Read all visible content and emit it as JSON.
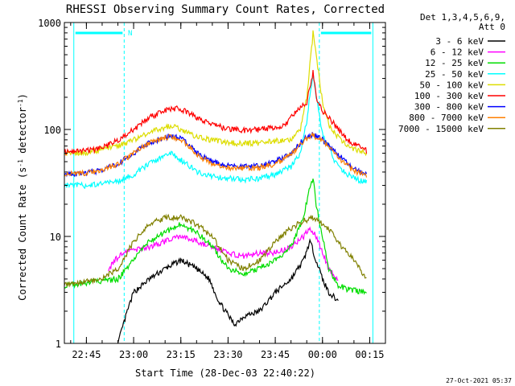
{
  "chart_data": {
    "type": "line",
    "title": "RHESSI Observing Summary Count Rates, Corrected",
    "xlabel": "Start Time (28-Dec-03 22:40:22)",
    "ylabel": "Corrected Count Rate (s",
    "ylabel_sup1": "-1",
    "ylabel_mid": " detector",
    "ylabel_sup2": "-1",
    "ylabel_end": ")",
    "yscale": "log",
    "ylim": [
      1,
      1000
    ],
    "xlim_minutes": [
      -20,
      20
    ],
    "x_reference": "00:00",
    "xtick_labels": [
      {
        "m": -75,
        "label": "22:45"
      },
      {
        "m": -60,
        "label": "23:00"
      },
      {
        "m": -45,
        "label": "23:15"
      },
      {
        "m": -30,
        "label": "23:30"
      },
      {
        "m": -15,
        "label": "23:45"
      },
      {
        "m": 0,
        "label": "00:00"
      },
      {
        "m": 15,
        "label": "00:15"
      }
    ],
    "ytick_labels": [
      {
        "v": 1,
        "label": "1"
      },
      {
        "v": 10,
        "label": "10"
      },
      {
        "v": 100,
        "label": "100"
      },
      {
        "v": 1000,
        "label": "1000"
      }
    ],
    "legend_header": [
      "Det 1,3,4,5,6,9,",
      "Att 0"
    ],
    "legend_position": "right",
    "annotations": {
      "night_marker": "N",
      "night_bars": [
        [
          -79,
          -63
        ],
        [
          -1,
          16
        ]
      ],
      "night_boundaries_minutes": [
        -79,
        -63,
        -1,
        16
      ],
      "timestamp": "27-Oct-2021 05:37"
    },
    "series": [
      {
        "name": "3 - 6 keV",
        "color": "#000000",
        "points": [
          [
            -65,
            1
          ],
          [
            -62,
            2
          ],
          [
            -60,
            3
          ],
          [
            -55,
            4
          ],
          [
            -50,
            5
          ],
          [
            -45,
            6
          ],
          [
            -40,
            5
          ],
          [
            -36,
            4
          ],
          [
            -33,
            2.5
          ],
          [
            -28,
            1.5
          ],
          [
            -25,
            1.8
          ],
          [
            -20,
            2
          ],
          [
            -15,
            3
          ],
          [
            -10,
            4
          ],
          [
            -6,
            6
          ],
          [
            -4,
            9
          ],
          [
            -2,
            6
          ],
          [
            0,
            4
          ],
          [
            2,
            3
          ],
          [
            5,
            2.5
          ]
        ]
      },
      {
        "name": "6 - 12 keV",
        "color": "#ff00ff",
        "points": [
          [
            -68,
            5
          ],
          [
            -64,
            7
          ],
          [
            -55,
            8
          ],
          [
            -50,
            9
          ],
          [
            -45,
            10
          ],
          [
            -40,
            9
          ],
          [
            -35,
            8
          ],
          [
            -30,
            7
          ],
          [
            -25,
            6.5
          ],
          [
            -20,
            7
          ],
          [
            -15,
            7
          ],
          [
            -10,
            8
          ],
          [
            -6,
            10
          ],
          [
            -4,
            12
          ],
          [
            -2,
            10
          ],
          [
            0,
            7
          ],
          [
            2,
            5
          ],
          [
            5,
            4
          ]
        ]
      },
      {
        "name": "12 - 25 keV",
        "color": "#00dd00",
        "points": [
          [
            -82,
            3.5
          ],
          [
            -65,
            4
          ],
          [
            -60,
            6
          ],
          [
            -55,
            9
          ],
          [
            -50,
            11
          ],
          [
            -45,
            13
          ],
          [
            -40,
            11
          ],
          [
            -35,
            8
          ],
          [
            -30,
            5
          ],
          [
            -25,
            4.5
          ],
          [
            -20,
            5
          ],
          [
            -15,
            6
          ],
          [
            -10,
            8
          ],
          [
            -6,
            15
          ],
          [
            -4,
            30
          ],
          [
            -3,
            35
          ],
          [
            -2,
            20
          ],
          [
            0,
            10
          ],
          [
            2,
            5
          ],
          [
            5,
            3.5
          ],
          [
            8,
            3.2
          ],
          [
            14,
            3
          ]
        ]
      },
      {
        "name": "25 - 50 keV",
        "color": "#00ffff",
        "points": [
          [
            -82,
            30
          ],
          [
            -75,
            30
          ],
          [
            -70,
            31
          ],
          [
            -65,
            33
          ],
          [
            -60,
            38
          ],
          [
            -55,
            48
          ],
          [
            -50,
            56
          ],
          [
            -48,
            60
          ],
          [
            -45,
            52
          ],
          [
            -42,
            45
          ],
          [
            -40,
            40
          ],
          [
            -36,
            37
          ],
          [
            -30,
            35
          ],
          [
            -25,
            34
          ],
          [
            -20,
            35
          ],
          [
            -15,
            38
          ],
          [
            -10,
            45
          ],
          [
            -7,
            60
          ],
          [
            -5,
            120
          ],
          [
            -3,
            350
          ],
          [
            -2,
            200
          ],
          [
            0,
            90
          ],
          [
            2,
            70
          ],
          [
            4,
            50
          ],
          [
            7,
            40
          ],
          [
            10,
            35
          ],
          [
            14,
            32
          ]
        ]
      },
      {
        "name": "50 - 100 keV",
        "color": "#dddd00",
        "points": [
          [
            -82,
            60
          ],
          [
            -75,
            61
          ],
          [
            -70,
            65
          ],
          [
            -65,
            70
          ],
          [
            -60,
            80
          ],
          [
            -55,
            95
          ],
          [
            -50,
            105
          ],
          [
            -48,
            108
          ],
          [
            -45,
            100
          ],
          [
            -42,
            90
          ],
          [
            -40,
            85
          ],
          [
            -35,
            80
          ],
          [
            -30,
            75
          ],
          [
            -25,
            74
          ],
          [
            -20,
            75
          ],
          [
            -15,
            78
          ],
          [
            -10,
            80
          ],
          [
            -7,
            100
          ],
          [
            -5,
            200
          ],
          [
            -3,
            800
          ],
          [
            -2,
            500
          ],
          [
            0,
            180
          ],
          [
            2,
            110
          ],
          [
            5,
            85
          ],
          [
            8,
            70
          ],
          [
            12,
            62
          ],
          [
            14,
            60
          ]
        ]
      },
      {
        "name": "100 - 300 keV",
        "color": "#ff0000",
        "points": [
          [
            -82,
            62
          ],
          [
            -75,
            63
          ],
          [
            -70,
            67
          ],
          [
            -65,
            80
          ],
          [
            -60,
            100
          ],
          [
            -55,
            130
          ],
          [
            -50,
            150
          ],
          [
            -48,
            158
          ],
          [
            -45,
            155
          ],
          [
            -42,
            140
          ],
          [
            -40,
            130
          ],
          [
            -35,
            110
          ],
          [
            -30,
            102
          ],
          [
            -25,
            98
          ],
          [
            -20,
            100
          ],
          [
            -15,
            105
          ],
          [
            -12,
            110
          ],
          [
            -10,
            130
          ],
          [
            -7,
            160
          ],
          [
            -5,
            180
          ],
          [
            -3,
            350
          ],
          [
            -2,
            200
          ],
          [
            0,
            150
          ],
          [
            2,
            130
          ],
          [
            5,
            100
          ],
          [
            8,
            80
          ],
          [
            12,
            68
          ],
          [
            14,
            63
          ]
        ]
      },
      {
        "name": "300 - 800 keV",
        "color": "#0000ff",
        "points": [
          [
            -82,
            38
          ],
          [
            -75,
            39
          ],
          [
            -70,
            42
          ],
          [
            -65,
            48
          ],
          [
            -60,
            60
          ],
          [
            -55,
            75
          ],
          [
            -50,
            85
          ],
          [
            -48,
            87
          ],
          [
            -45,
            82
          ],
          [
            -42,
            70
          ],
          [
            -40,
            60
          ],
          [
            -35,
            50
          ],
          [
            -30,
            46
          ],
          [
            -25,
            45
          ],
          [
            -20,
            46
          ],
          [
            -15,
            50
          ],
          [
            -10,
            60
          ],
          [
            -7,
            75
          ],
          [
            -5,
            85
          ],
          [
            -3,
            90
          ],
          [
            0,
            80
          ],
          [
            3,
            65
          ],
          [
            6,
            55
          ],
          [
            9,
            45
          ],
          [
            12,
            40
          ],
          [
            14,
            38
          ]
        ]
      },
      {
        "name": "800 - 7000 keV",
        "color": "#ff7f00",
        "points": [
          [
            -82,
            38
          ],
          [
            -75,
            39
          ],
          [
            -70,
            42
          ],
          [
            -65,
            48
          ],
          [
            -60,
            60
          ],
          [
            -55,
            75
          ],
          [
            -50,
            84
          ],
          [
            -48,
            86
          ],
          [
            -45,
            80
          ],
          [
            -42,
            68
          ],
          [
            -40,
            58
          ],
          [
            -35,
            48
          ],
          [
            -30,
            44
          ],
          [
            -25,
            43
          ],
          [
            -20,
            44
          ],
          [
            -15,
            48
          ],
          [
            -10,
            58
          ],
          [
            -7,
            72
          ],
          [
            -5,
            83
          ],
          [
            -3,
            88
          ],
          [
            0,
            78
          ],
          [
            3,
            63
          ],
          [
            6,
            52
          ],
          [
            9,
            43
          ],
          [
            12,
            39
          ],
          [
            14,
            37
          ]
        ]
      },
      {
        "name": "7000 - 15000 keV",
        "color": "#808000",
        "points": [
          [
            -82,
            3.5
          ],
          [
            -70,
            4
          ],
          [
            -65,
            5
          ],
          [
            -60,
            9
          ],
          [
            -55,
            13
          ],
          [
            -50,
            15
          ],
          [
            -45,
            15
          ],
          [
            -40,
            13
          ],
          [
            -35,
            10
          ],
          [
            -30,
            6
          ],
          [
            -25,
            5
          ],
          [
            -20,
            6
          ],
          [
            -15,
            9
          ],
          [
            -10,
            12
          ],
          [
            -6,
            14
          ],
          [
            -3,
            15
          ],
          [
            0,
            13
          ],
          [
            3,
            11
          ],
          [
            6,
            8
          ],
          [
            10,
            6
          ],
          [
            14,
            4
          ]
        ]
      }
    ]
  }
}
